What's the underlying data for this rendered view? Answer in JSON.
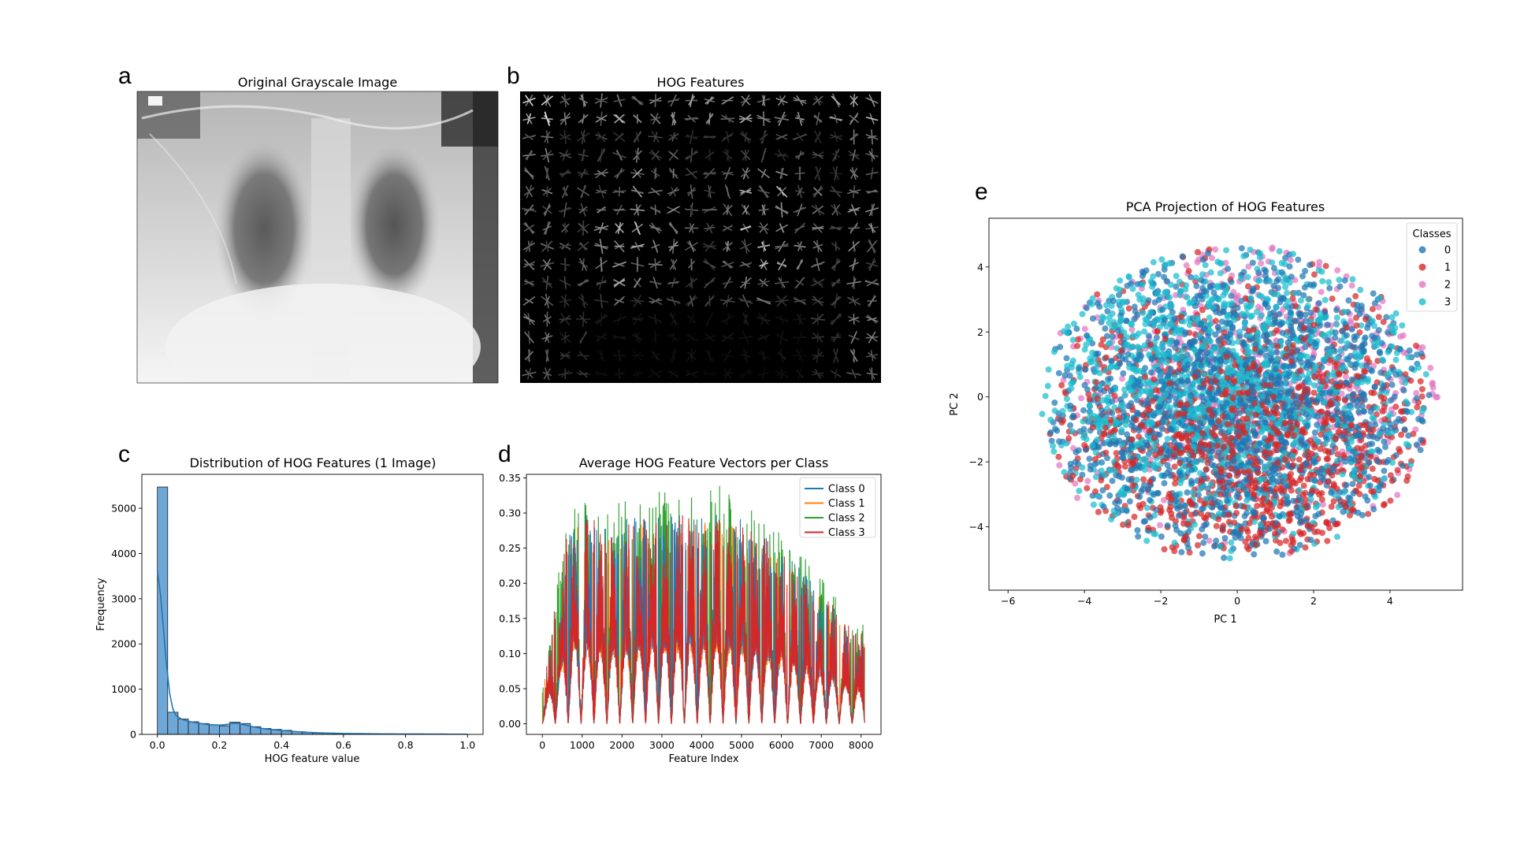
{
  "panels": {
    "a": {
      "letter": "a",
      "title": "Original Grayscale Image"
    },
    "b": {
      "letter": "b",
      "title": "HOG Features"
    },
    "c": {
      "letter": "c"
    },
    "d": {
      "letter": "d"
    },
    "e": {
      "letter": "e"
    }
  },
  "colors": {
    "class0": "#1f77b4",
    "class1": "#ff7f0e",
    "class2": "#2ca02c",
    "class3": "#d62728",
    "hist_bar": "#6fa8d6",
    "pca0": "#1f77b4",
    "pca1": "#d62728",
    "pca2": "#e377c2",
    "pca3": "#17becf"
  },
  "chart_data": [
    {
      "id": "c",
      "type": "bar",
      "title": "Distribution of HOG Features (1 Image)",
      "xlabel": "HOG feature value",
      "ylabel": "Frequency",
      "xlim": [
        -0.05,
        1.05
      ],
      "ylim": [
        0,
        5750
      ],
      "xticks": [
        0.0,
        0.2,
        0.4,
        0.6,
        0.8,
        1.0
      ],
      "xtick_labels": [
        "0.0",
        "0.2",
        "0.4",
        "0.6",
        "0.8",
        "1.0"
      ],
      "yticks": [
        0,
        1000,
        2000,
        3000,
        4000,
        5000
      ],
      "ytick_labels": [
        "0",
        "1000",
        "2000",
        "3000",
        "4000",
        "5000"
      ],
      "bin_width": 0.0333,
      "bin_starts": [
        0.0,
        0.0333,
        0.0667,
        0.1,
        0.1333,
        0.1667,
        0.2,
        0.2333,
        0.2667,
        0.3,
        0.3333,
        0.3667,
        0.4,
        0.4333,
        0.4667,
        0.5,
        0.5333,
        0.5667,
        0.6,
        0.6333,
        0.6667,
        0.7,
        0.7333,
        0.7667,
        0.8,
        0.8333,
        0.8667,
        0.9,
        0.9333,
        0.9667
      ],
      "values": [
        5470,
        490,
        340,
        280,
        240,
        210,
        190,
        270,
        240,
        170,
        130,
        110,
        90,
        60,
        40,
        30,
        30,
        20,
        20,
        15,
        10,
        10,
        8,
        6,
        5,
        5,
        4,
        3,
        3,
        2
      ],
      "kde": {
        "x": [
          0.0,
          0.01,
          0.02,
          0.03,
          0.04,
          0.05,
          0.06,
          0.08,
          0.1,
          0.13,
          0.16,
          0.2,
          0.23,
          0.25,
          0.27,
          0.3,
          0.33,
          0.36,
          0.4,
          0.45,
          0.5,
          0.55,
          0.6,
          0.7,
          0.8,
          0.9,
          1.0
        ],
        "y": [
          3620,
          3100,
          2300,
          1500,
          900,
          560,
          420,
          330,
          290,
          250,
          220,
          205,
          225,
          250,
          230,
          180,
          140,
          110,
          85,
          60,
          40,
          28,
          20,
          12,
          8,
          5,
          3
        ]
      }
    },
    {
      "id": "d",
      "type": "line",
      "title": "Average HOG Feature Vectors per Class",
      "xlabel": "Feature Index",
      "ylabel": "",
      "xlim": [
        -400,
        8500
      ],
      "ylim": [
        -0.015,
        0.355
      ],
      "xticks": [
        0,
        1000,
        2000,
        3000,
        4000,
        5000,
        6000,
        7000,
        8000
      ],
      "xtick_labels": [
        "0",
        "1000",
        "2000",
        "3000",
        "4000",
        "5000",
        "6000",
        "7000",
        "8000"
      ],
      "yticks": [
        0.0,
        0.05,
        0.1,
        0.15,
        0.2,
        0.25,
        0.3,
        0.35
      ],
      "ytick_labels": [
        "0.00",
        "0.05",
        "0.10",
        "0.15",
        "0.20",
        "0.25",
        "0.30",
        "0.35"
      ],
      "n_features": 8100,
      "cycle_length": 324,
      "envelope": {
        "x": [
          0,
          200,
          400,
          700,
          1000,
          1300,
          1600,
          2000,
          2500,
          3000,
          3500,
          4000,
          4500,
          5000,
          5500,
          6000,
          6500,
          7000,
          7500,
          7800,
          8100
        ],
        "y": [
          0.05,
          0.12,
          0.2,
          0.3,
          0.3,
          0.29,
          0.28,
          0.29,
          0.3,
          0.3,
          0.3,
          0.3,
          0.31,
          0.29,
          0.27,
          0.25,
          0.22,
          0.19,
          0.16,
          0.13,
          0.13
        ]
      },
      "legend_location": "upper right",
      "series": [
        {
          "name": "Class 0",
          "color": "#1f77b4"
        },
        {
          "name": "Class 1",
          "color": "#ff7f0e"
        },
        {
          "name": "Class 2",
          "color": "#2ca02c"
        },
        {
          "name": "Class 3",
          "color": "#d62728"
        }
      ]
    },
    {
      "id": "e",
      "type": "scatter",
      "title": "PCA Projection of HOG Features",
      "xlabel": "PC 1",
      "ylabel": "PC 2",
      "xlim": [
        -6.5,
        5.9
      ],
      "ylim": [
        -5.95,
        5.5
      ],
      "xticks": [
        -6,
        -4,
        -2,
        0,
        2,
        4
      ],
      "xtick_labels": [
        "−6",
        "−4",
        "−2",
        "0",
        "2",
        "4"
      ],
      "yticks": [
        -4,
        -2,
        0,
        2,
        4
      ],
      "ytick_labels": [
        "−4",
        "−2",
        "0",
        "2",
        "4"
      ],
      "legend_title": "Classes",
      "legend_location": "upper right",
      "cloud_center": [
        0,
        -0.2
      ],
      "cloud_radii": [
        5.2,
        4.9
      ],
      "series": [
        {
          "name": "0",
          "color": "#1f77b4"
        },
        {
          "name": "1",
          "color": "#d62728"
        },
        {
          "name": "2",
          "color": "#e377c2"
        },
        {
          "name": "3",
          "color": "#17becf"
        }
      ]
    }
  ]
}
